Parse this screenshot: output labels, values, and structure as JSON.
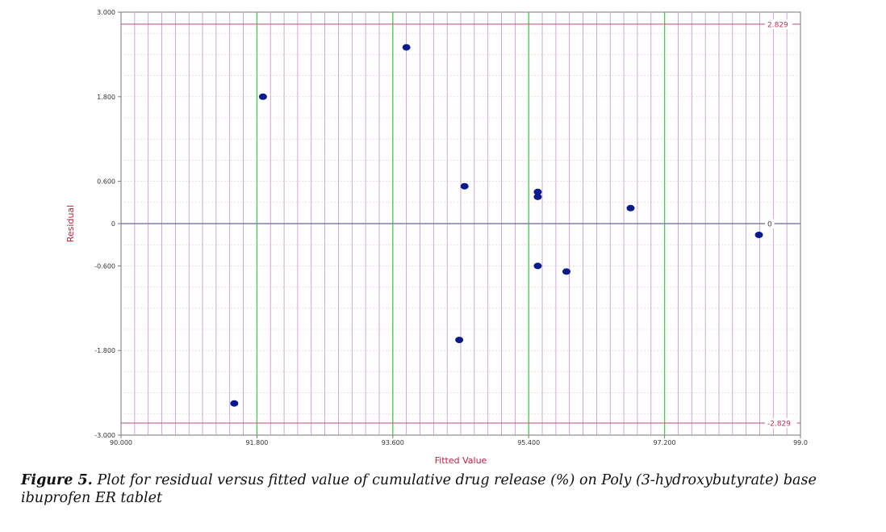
{
  "chart_data": {
    "type": "scatter",
    "xlabel": "Fitted Value",
    "ylabel": "Residual",
    "xlim": [
      90.0,
      99.0
    ],
    "ylim": [
      -3.0,
      3.0
    ],
    "x_ticks": [
      90.0,
      91.8,
      93.6,
      95.4,
      97.2,
      99.0
    ],
    "x_tick_labels": [
      "90.000",
      "91.800",
      "93.600",
      "95.400",
      "97.200",
      "99.0"
    ],
    "y_ticks": [
      3.0,
      1.8,
      0.6,
      0,
      -0.6,
      -1.8,
      -3.0
    ],
    "y_tick_labels": [
      "3.000",
      "1.800",
      "0.600",
      "0",
      "-0.600",
      "-1.800",
      "-3.000"
    ],
    "control_limits": [
      {
        "value": 2.829,
        "label": "2.829"
      },
      {
        "value": 0,
        "label": "0"
      },
      {
        "value": -2.829,
        "label": "-2.829"
      }
    ],
    "points": [
      {
        "x": 91.5,
        "y": -2.55
      },
      {
        "x": 91.88,
        "y": 1.8
      },
      {
        "x": 93.78,
        "y": 2.5
      },
      {
        "x": 94.48,
        "y": -1.65
      },
      {
        "x": 94.55,
        "y": 0.53
      },
      {
        "x": 95.52,
        "y": 0.45
      },
      {
        "x": 95.52,
        "y": 0.38
      },
      {
        "x": 95.52,
        "y": -0.6
      },
      {
        "x": 95.9,
        "y": -0.68
      },
      {
        "x": 96.75,
        "y": 0.22
      },
      {
        "x": 98.45,
        "y": -0.16
      }
    ],
    "grid": true,
    "colors": {
      "points": "#0a1a8c",
      "limit_lines": "#c06080",
      "minor_grid": "#c890c8",
      "major_grid": "#4cc84c",
      "h_grid": "#e6c8d6",
      "zero_line": "#8080a8",
      "axis_title": "#c02040"
    }
  },
  "caption": {
    "label": "Figure 5.",
    "text": "Plot for residual versus fitted value of cumulative drug release (%) on Poly (3-hydroxybutyrate) base ibuprofen ER tablet"
  }
}
